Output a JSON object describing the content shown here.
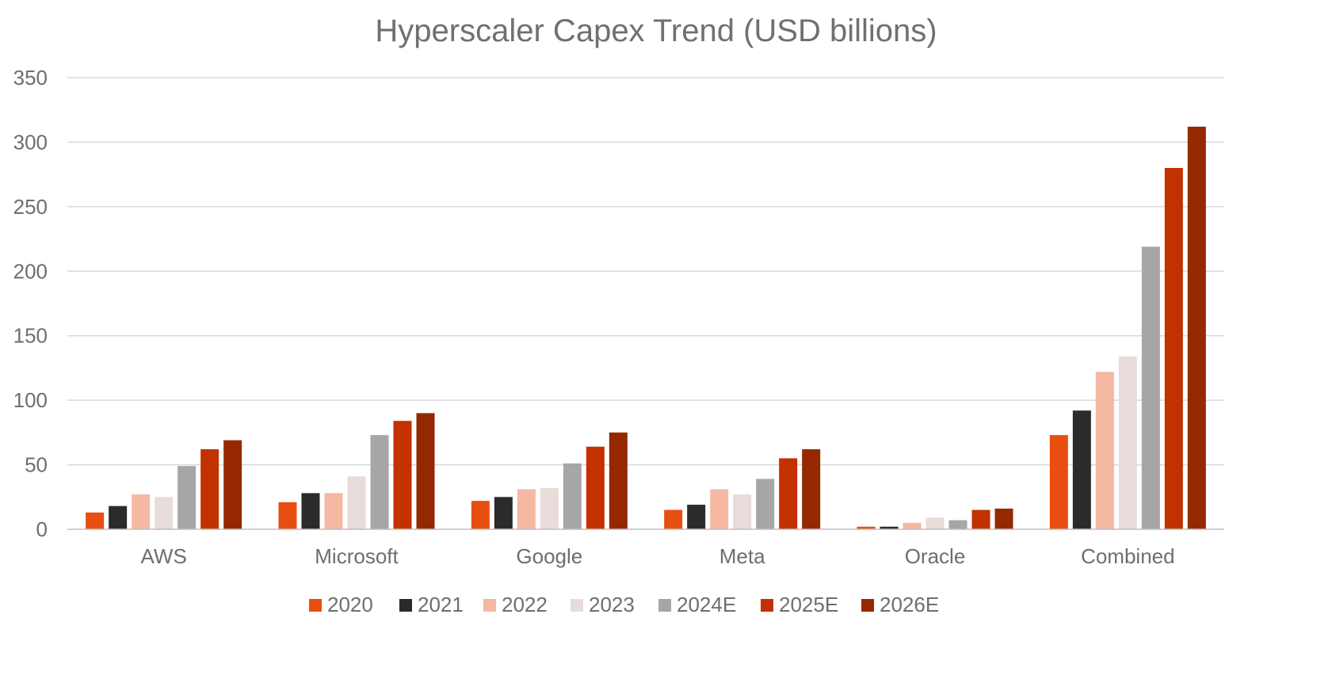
{
  "chart_data": {
    "type": "bar",
    "title": "Hyperscaler Capex Trend (USD billions)",
    "xlabel": "",
    "ylabel": "",
    "ylim": [
      0,
      350
    ],
    "yticks": [
      0,
      50,
      100,
      150,
      200,
      250,
      300,
      350
    ],
    "grid": true,
    "legend_position": "bottom",
    "categories": [
      "AWS",
      "Microsoft",
      "Google",
      "Meta",
      "Oracle",
      "Combined"
    ],
    "series": [
      {
        "name": "2020",
        "color": "#E84E0F",
        "values": [
          13,
          21,
          22,
          15,
          2,
          73
        ]
      },
      {
        "name": "2021",
        "color": "#2B2B2B",
        "values": [
          18,
          28,
          25,
          19,
          2,
          92
        ]
      },
      {
        "name": "2022",
        "color": "#F4B8A3",
        "values": [
          27,
          28,
          31,
          31,
          5,
          122
        ]
      },
      {
        "name": "2023",
        "color": "#E8DCDA",
        "values": [
          25,
          41,
          32,
          27,
          9,
          134
        ]
      },
      {
        "name": "2024E",
        "color": "#A6A6A6",
        "values": [
          49,
          73,
          51,
          39,
          7,
          219
        ]
      },
      {
        "name": "2025E",
        "color": "#C23100",
        "values": [
          62,
          84,
          64,
          55,
          15,
          280
        ]
      },
      {
        "name": "2026E",
        "color": "#952800",
        "values": [
          69,
          90,
          75,
          62,
          16,
          312
        ]
      }
    ]
  }
}
